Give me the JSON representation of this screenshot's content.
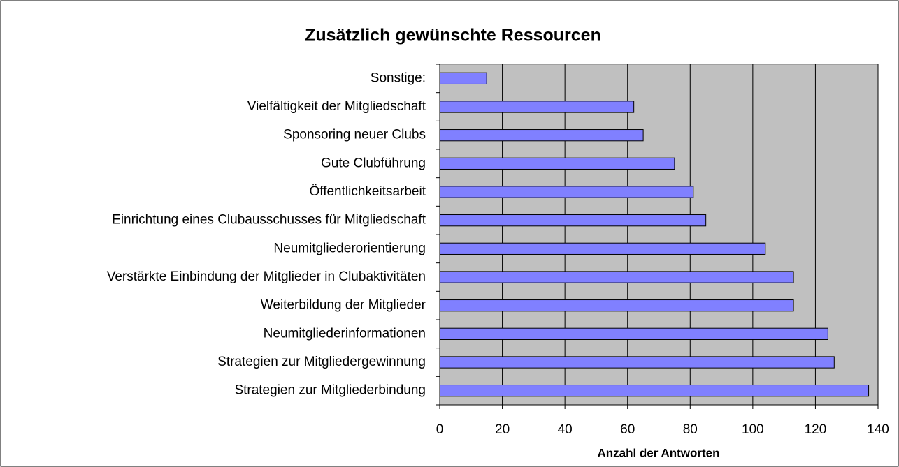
{
  "chart_data": {
    "type": "barh",
    "title": "Zusätzlich gewünschte Ressourcen",
    "xlabel": "Anzahl der Antworten",
    "categories": [
      "Sonstige:",
      "Vielfältigkeit der Mitgliedschaft",
      "Sponsoring neuer Clubs",
      "Gute Clubführung",
      "Öffentlichkeitsarbeit",
      "Einrichtung eines Clubausschusses für Mitgliedschaft",
      "Neumitgliederorientierung",
      "Verstärkte Einbindung der Mitglieder in Clubaktivitäten",
      "Weiterbildung der Mitglieder",
      "Neumitgliederinformationen",
      "Strategien zur Mitgliedergewinnung",
      "Strategien zur Mitgliederbindung"
    ],
    "values": [
      15,
      62,
      65,
      75,
      81,
      85,
      104,
      113,
      113,
      124,
      126,
      137
    ],
    "color": "#8080ff",
    "xlim": [
      0,
      140
    ],
    "xticks": [
      0,
      20,
      40,
      60,
      80,
      100,
      120,
      140
    ],
    "grid": true
  }
}
